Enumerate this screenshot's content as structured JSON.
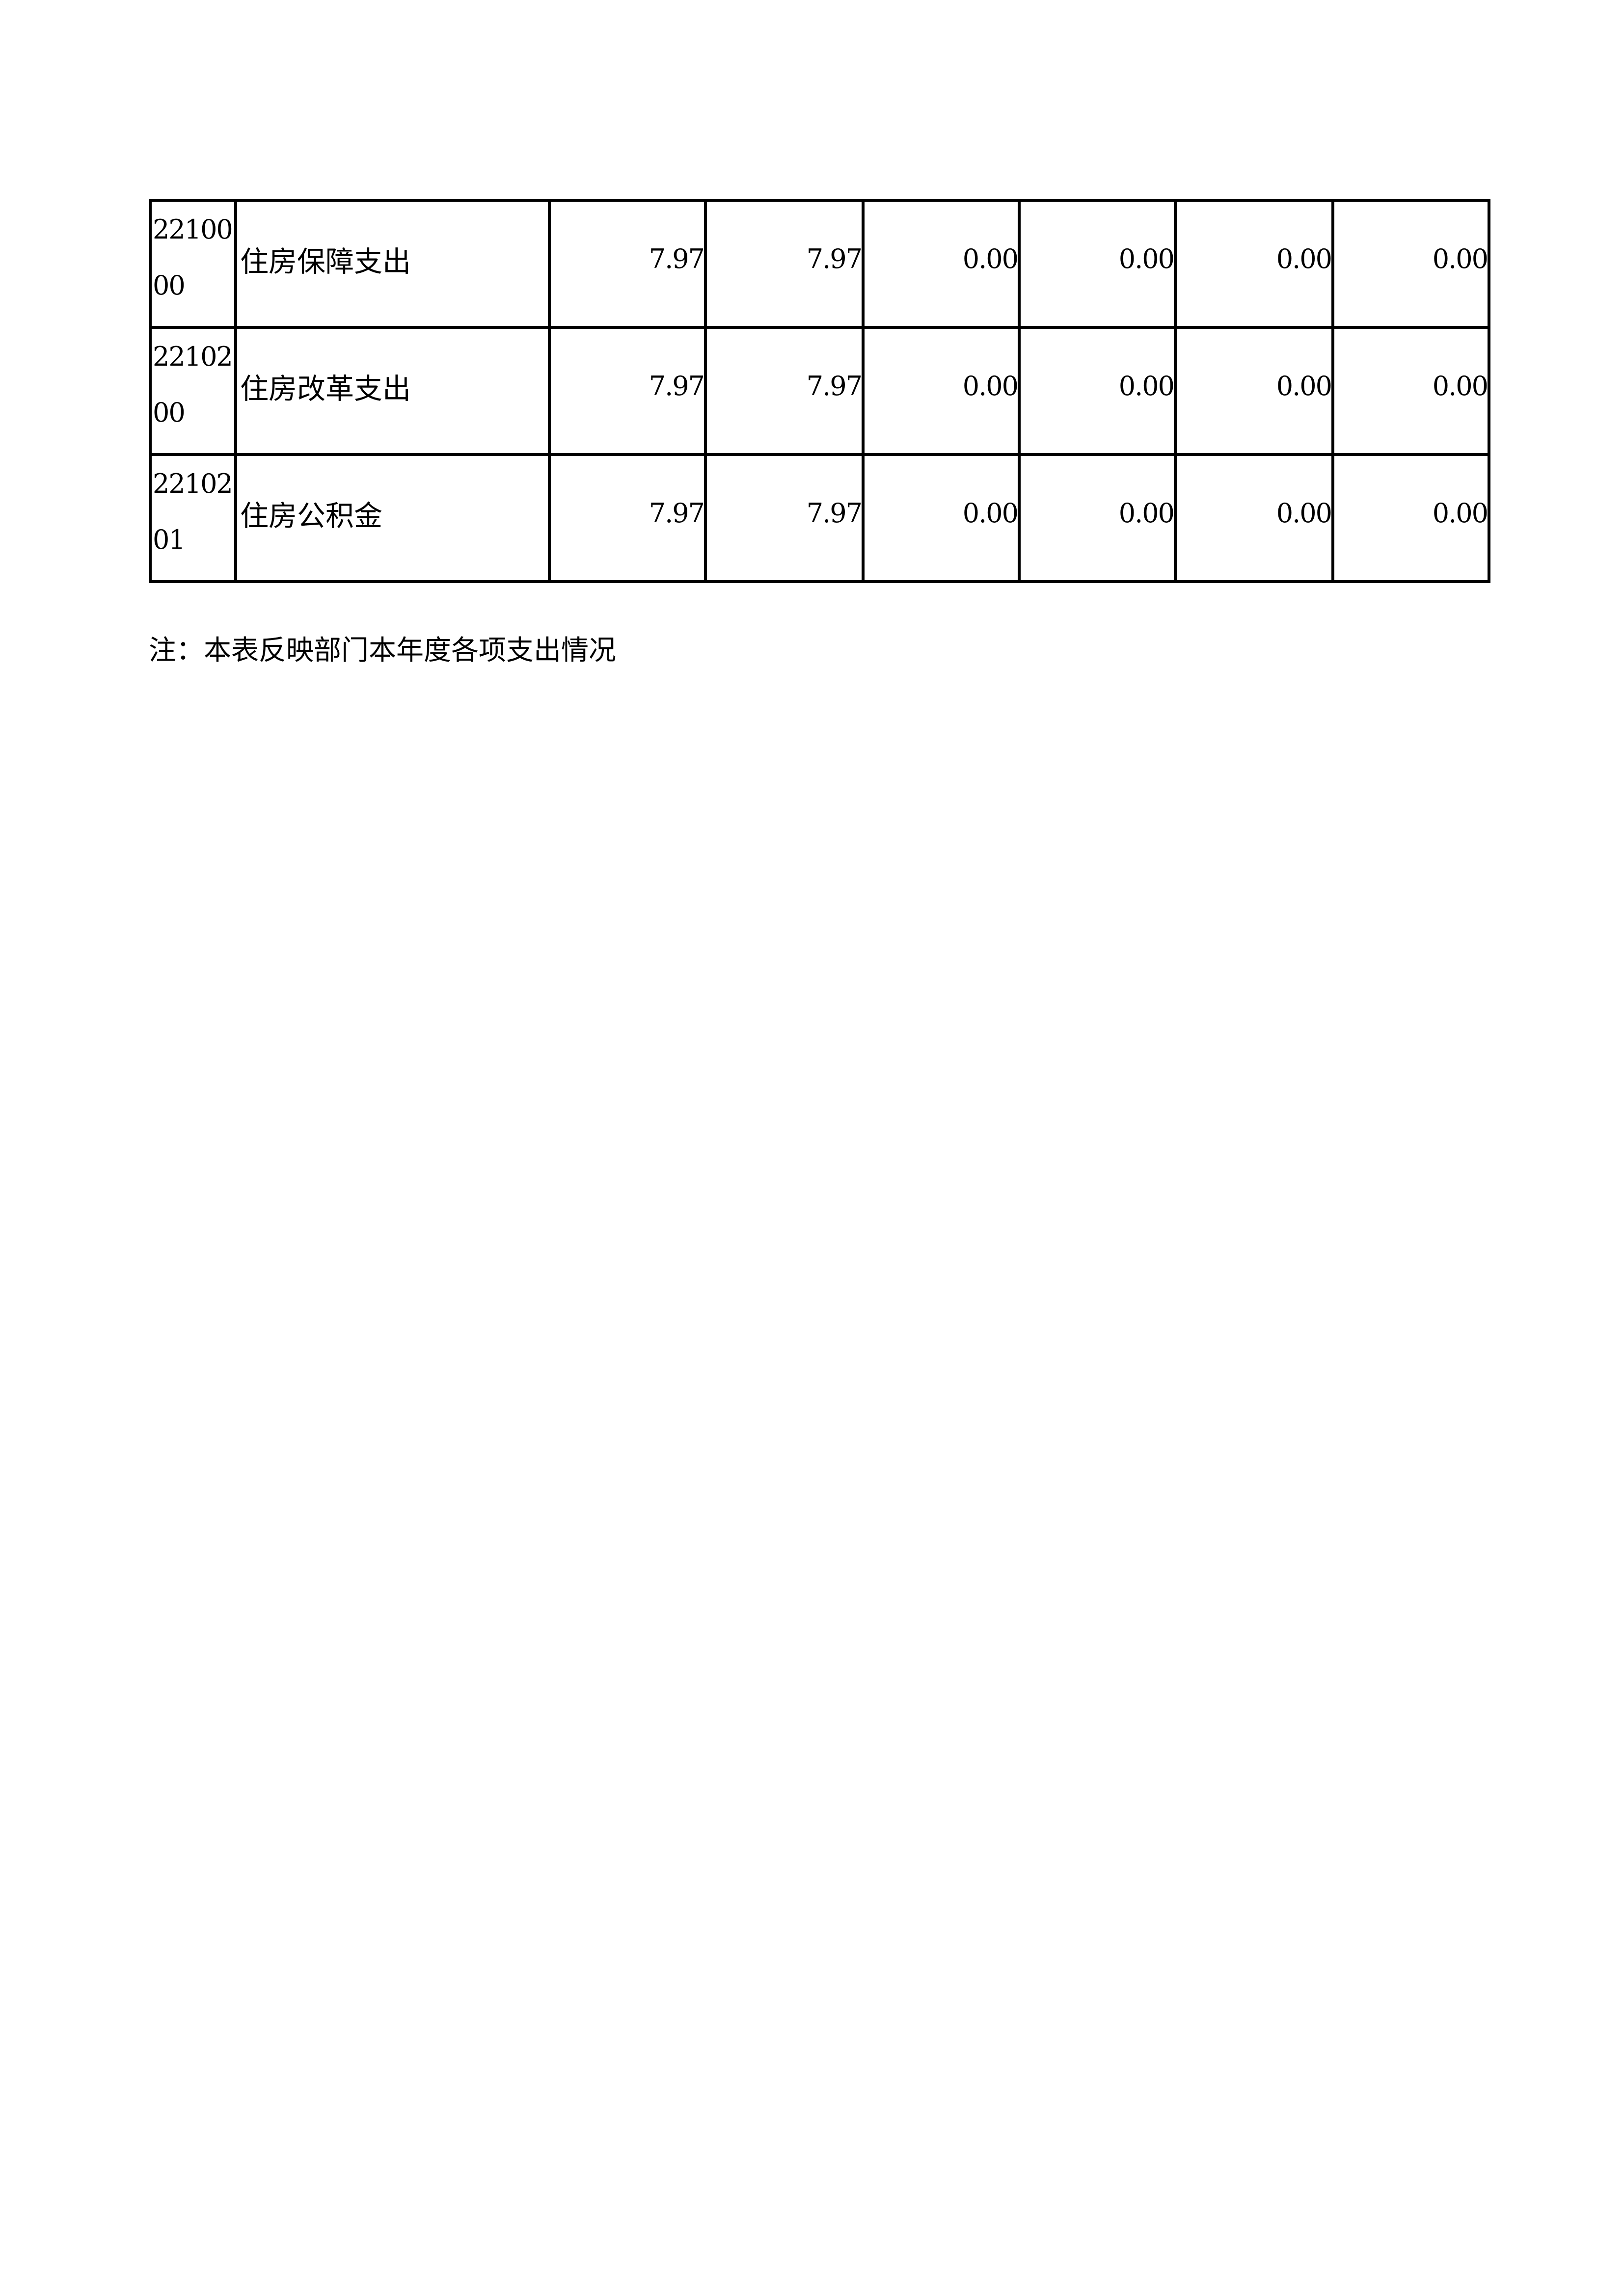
{
  "rows": [
    {
      "code": "2210000",
      "name": "住房保障支出",
      "values": [
        "7.97",
        "7.97",
        "0.00",
        "0.00",
        "0.00",
        "0.00"
      ]
    },
    {
      "code": "2210200",
      "name": "住房改革支出",
      "values": [
        "7.97",
        "7.97",
        "0.00",
        "0.00",
        "0.00",
        "0.00"
      ]
    },
    {
      "code": "2210201",
      "name": "住房公积金",
      "values": [
        "7.97",
        "7.97",
        "0.00",
        "0.00",
        "0.00",
        "0.00"
      ]
    }
  ],
  "note": "注：本表反映部门本年度各项支出情况"
}
